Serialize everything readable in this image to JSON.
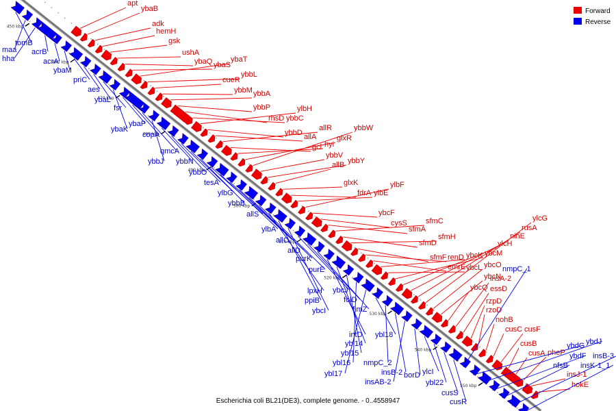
{
  "caption": "Escherichia coli BL21(DE3), complete genome. - 0..4558947",
  "legend": [
    {
      "label": "Forward",
      "color": "#ee0000"
    },
    {
      "label": "Reverse",
      "color": "#0000ee"
    }
  ],
  "ticks": [
    "450 kbp",
    "460 kbp",
    "470 kbp",
    "480 kbp",
    "490 kbp",
    "500 kbp",
    "510 kbp",
    "520 kbp",
    "530 kbp",
    "540 kbp",
    "550 kbp",
    "560 kbp"
  ],
  "forward_genes": [
    "apt",
    "ybaB",
    "adk",
    "hemH",
    "gsk",
    "ushA",
    "ybaQ",
    "ybaS",
    "ybaT",
    "ybbL",
    "cueR",
    "ybbM",
    "ybbA",
    "ybbP",
    "rhsD",
    "ybbC",
    "ylbH",
    "ybbD",
    "allA",
    "allR",
    "gcl",
    "hyi",
    "glxR",
    "ybbW",
    "ybbV",
    "ybbY",
    "allB",
    "glxK",
    "fdrA",
    "ylbE",
    "ylbF",
    "ybcF",
    "cysS",
    "sfmA",
    "sfmC",
    "sfmD",
    "sfmH",
    "sfmF",
    "renD",
    "emrE",
    "ybcK",
    "ybcL",
    "ybcM",
    "ylcH",
    "ninE",
    "rusA",
    "ylcG",
    "ybcO",
    "ybcN",
    "ybcQ",
    "insA-2",
    "essD",
    "rzpD",
    "rzoD",
    "nohB",
    "cusC",
    "cusF",
    "cusB",
    "cusA",
    "pheP",
    "insJ-1",
    "hokE"
  ],
  "reverse_genes": [
    "tomB",
    "maa",
    "hha",
    "acrB",
    "acrA",
    "ybaM",
    "priC",
    "aes",
    "ybaL",
    "fsr",
    "ybaK",
    "ybaP",
    "copA",
    "qmcA",
    "ybbJ",
    "ybbN",
    "ybbO",
    "tesA",
    "ylbG",
    "ybbB",
    "allS",
    "ylbA",
    "allC",
    "allD",
    "purK",
    "purE",
    "lpxH",
    "ppiB",
    "ybcI",
    "ybcJ",
    "folD",
    "fimZ",
    "intD",
    "ybl14",
    "ybl15",
    "ybl16",
    "ybl17",
    "ybl18",
    "nmpC_2",
    "insB-2",
    "insAB-2",
    "borD",
    "ylcI",
    "ybl22",
    "cusS",
    "cusR",
    "nmpC_1",
    "ybdG",
    "ybdJ",
    "ybdF",
    "nfsB",
    "insB-3",
    "insK-1_1"
  ]
}
